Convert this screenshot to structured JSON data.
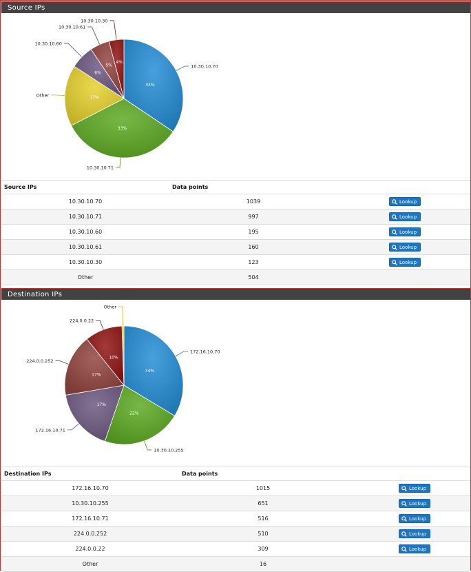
{
  "source": {
    "title": "Source IPs",
    "col_ip": "Source IPs",
    "col_points": "Data points",
    "lookup_label": "Lookup",
    "rows": [
      {
        "ip": "10.30.10.70",
        "points": "1039",
        "lookup": true
      },
      {
        "ip": "10.30.10.71",
        "points": "997",
        "lookup": true
      },
      {
        "ip": "10.30.10.60",
        "points": "195",
        "lookup": true
      },
      {
        "ip": "10.30.10.61",
        "points": "160",
        "lookup": true
      },
      {
        "ip": "10.30.10.30",
        "points": "123",
        "lookup": true
      },
      {
        "ip": "Other",
        "points": "504",
        "lookup": false
      }
    ]
  },
  "destination": {
    "title": "Destination IPs",
    "col_ip": "Destination IPs",
    "col_points": "Data points",
    "lookup_label": "Lookup",
    "rows": [
      {
        "ip": "172.16.10.70",
        "points": "1015",
        "lookup": true
      },
      {
        "ip": "10.30.10.255",
        "points": "651",
        "lookup": true
      },
      {
        "ip": "172.16.10.71",
        "points": "516",
        "lookup": true
      },
      {
        "ip": "224.0.0.252",
        "points": "510",
        "lookup": true
      },
      {
        "ip": "224.0.0.22",
        "points": "309",
        "lookup": true
      },
      {
        "ip": "Other",
        "points": "16",
        "lookup": false
      }
    ]
  },
  "chart_data": [
    {
      "type": "pie",
      "categories": [
        "10.30.10.70",
        "10.30.10.71",
        "Other",
        "10.30.10.60",
        "10.30.10.61",
        "10.30.10.30"
      ],
      "values": [
        1039,
        997,
        504,
        195,
        160,
        123
      ],
      "percent_labels": [
        "34%",
        "33%",
        "17%",
        "6%",
        "5%",
        "4%"
      ],
      "colors": [
        "#1f77b4",
        "#4f8f1e",
        "#c2b026",
        "#5d4b6e",
        "#7b3a35",
        "#7a1212"
      ]
    },
    {
      "type": "pie",
      "categories": [
        "172.16.10.70",
        "10.30.10.255",
        "172.16.10.71",
        "224.0.0.252",
        "224.0.0.22",
        "Other"
      ],
      "values": [
        1015,
        651,
        516,
        510,
        309,
        16
      ],
      "percent_labels": [
        "34%",
        "22%",
        "17%",
        "17%",
        "10%",
        ""
      ],
      "colors": [
        "#1f77b4",
        "#4f8f1e",
        "#5d4b6e",
        "#7b3a35",
        "#7a1212",
        "#c2b026"
      ]
    }
  ]
}
